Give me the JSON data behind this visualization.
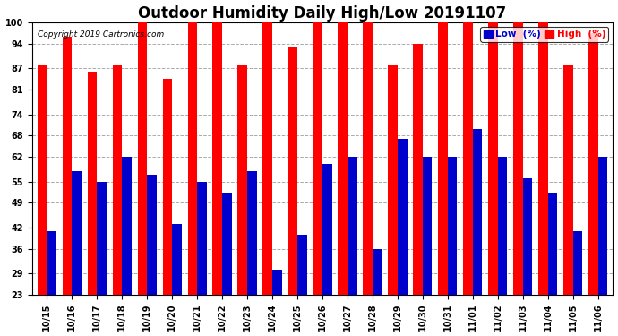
{
  "title": "Outdoor Humidity Daily High/Low 20191107",
  "copyright": "Copyright 2019 Cartronics.com",
  "categories": [
    "10/15",
    "10/16",
    "10/17",
    "10/18",
    "10/19",
    "10/20",
    "10/21",
    "10/22",
    "10/23",
    "10/24",
    "10/25",
    "10/26",
    "10/27",
    "10/28",
    "10/29",
    "10/30",
    "10/31",
    "11/01",
    "11/02",
    "11/03",
    "11/04",
    "11/05",
    "11/06"
  ],
  "high_values": [
    88,
    96,
    86,
    88,
    100,
    84,
    100,
    100,
    88,
    100,
    93,
    100,
    100,
    100,
    88,
    94,
    100,
    100,
    100,
    100,
    100,
    88,
    97
  ],
  "low_values": [
    41,
    58,
    55,
    62,
    57,
    43,
    55,
    52,
    58,
    30,
    40,
    60,
    62,
    36,
    67,
    62,
    62,
    70,
    62,
    56,
    52,
    41,
    62
  ],
  "high_color": "#FF0000",
  "low_color": "#0000CC",
  "bg_color": "#FFFFFF",
  "grid_color": "#AAAAAA",
  "ylabel_values": [
    23,
    29,
    36,
    42,
    49,
    55,
    62,
    68,
    74,
    81,
    87,
    94,
    100
  ],
  "ymin": 23,
  "ymax": 100,
  "title_fontsize": 12,
  "tick_fontsize": 7,
  "copyright_fontsize": 6.5,
  "legend_fontsize": 7.5,
  "bar_width": 0.38
}
